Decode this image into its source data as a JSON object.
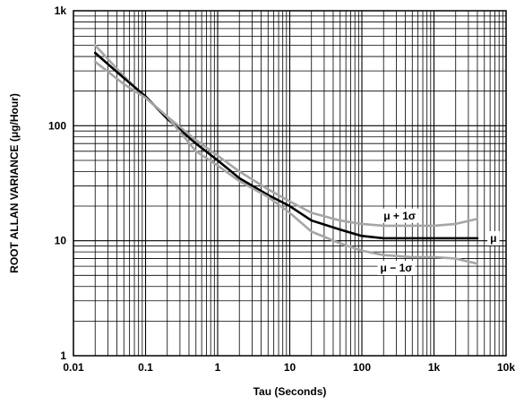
{
  "chart_data": {
    "type": "line",
    "xlabel": "Tau (Seconds)",
    "ylabel": "ROOT ALLAN VARIANCE (μg/Hour)",
    "xscale": "log",
    "yscale": "log",
    "xlim": [
      0.01,
      10000
    ],
    "ylim": [
      1,
      1000
    ],
    "grid": true,
    "x_ticks": [
      {
        "value": 0.01,
        "label": "0.01"
      },
      {
        "value": 0.1,
        "label": "0.1"
      },
      {
        "value": 1,
        "label": "1"
      },
      {
        "value": 10,
        "label": "10"
      },
      {
        "value": 100,
        "label": "100"
      },
      {
        "value": 1000,
        "label": "1k"
      },
      {
        "value": 10000,
        "label": "10k"
      }
    ],
    "y_ticks": [
      {
        "value": 1,
        "label": "1"
      },
      {
        "value": 10,
        "label": "10"
      },
      {
        "value": 100,
        "label": "100"
      },
      {
        "value": 1000,
        "label": "1k"
      }
    ],
    "series": [
      {
        "name": "μ + 1σ",
        "color": "#a6a6a6",
        "points": [
          [
            0.02,
            500
          ],
          [
            0.05,
            270
          ],
          [
            0.1,
            175
          ],
          [
            0.2,
            120
          ],
          [
            0.5,
            75
          ],
          [
            1,
            55
          ],
          [
            2,
            40
          ],
          [
            5,
            28
          ],
          [
            10,
            22
          ],
          [
            20,
            17.5
          ],
          [
            50,
            15
          ],
          [
            100,
            14
          ],
          [
            200,
            13.5
          ],
          [
            500,
            13.5
          ],
          [
            1000,
            13.5
          ],
          [
            2000,
            14
          ],
          [
            4000,
            15.5
          ]
        ],
        "label_pos": [
          200,
          16.5
        ]
      },
      {
        "name": "μ",
        "color": "#000000",
        "points": [
          [
            0.02,
            430
          ],
          [
            0.05,
            260
          ],
          [
            0.1,
            180
          ],
          [
            0.2,
            115
          ],
          [
            0.5,
            70
          ],
          [
            1,
            50
          ],
          [
            2,
            35
          ],
          [
            5,
            25
          ],
          [
            10,
            20
          ],
          [
            20,
            15
          ],
          [
            50,
            12.5
          ],
          [
            100,
            11
          ],
          [
            200,
            10.5
          ],
          [
            500,
            10.5
          ],
          [
            1000,
            10.5
          ],
          [
            2000,
            10.5
          ],
          [
            4000,
            10.5
          ]
        ],
        "label_pos": [
          6000,
          10.5
        ]
      },
      {
        "name": "μ − 1σ",
        "color": "#a6a6a6",
        "points": [
          [
            0.02,
            360
          ],
          [
            0.05,
            230
          ],
          [
            0.1,
            175
          ],
          [
            0.2,
            120
          ],
          [
            0.5,
            60
          ],
          [
            1,
            45
          ],
          [
            2,
            33
          ],
          [
            5,
            24
          ],
          [
            10,
            17.5
          ],
          [
            20,
            12
          ],
          [
            50,
            9.5
          ],
          [
            100,
            8.2
          ],
          [
            200,
            7.5
          ],
          [
            500,
            7.2
          ],
          [
            1000,
            7.2
          ],
          [
            2000,
            7.0
          ],
          [
            4000,
            6.3
          ]
        ],
        "label_pos": [
          180,
          5.8
        ]
      }
    ]
  }
}
